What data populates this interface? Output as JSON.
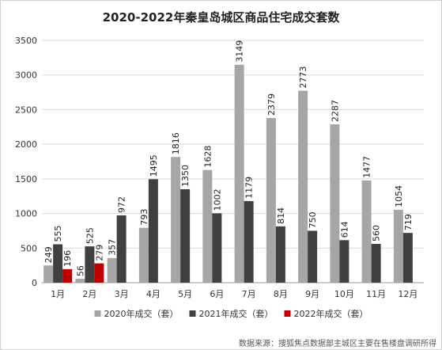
{
  "chart_data": {
    "type": "bar",
    "title": "2020-2022年秦皇岛城区商品住宅成交套数",
    "categories": [
      "1月",
      "2月",
      "3月",
      "4月",
      "5月",
      "6月",
      "7月",
      "8月",
      "9月",
      "10月",
      "11月",
      "12月"
    ],
    "series": [
      {
        "name": "2020年成交（套）",
        "color": "#a6a6a6",
        "values": [
          249,
          56,
          357,
          793,
          1816,
          1628,
          3149,
          2379,
          2773,
          2287,
          1477,
          1054
        ]
      },
      {
        "name": "2021年成交（套）",
        "color": "#404040",
        "values": [
          555,
          525,
          972,
          1495,
          1350,
          1002,
          1179,
          814,
          750,
          614,
          560,
          719
        ]
      },
      {
        "name": "2022年成交（套）",
        "color": "#c00000",
        "values": [
          196,
          279,
          null,
          null,
          null,
          null,
          null,
          null,
          null,
          null,
          null,
          null
        ]
      }
    ],
    "yticks": [
      0,
      500,
      1000,
      1500,
      2000,
      2500,
      3000,
      3500
    ],
    "ylim": [
      0,
      3500
    ],
    "grid": true,
    "legend_position": "bottom"
  },
  "footer": {
    "source": "数据来源：搜狐焦点数据部主城区主要在售楼盘调研所得"
  }
}
